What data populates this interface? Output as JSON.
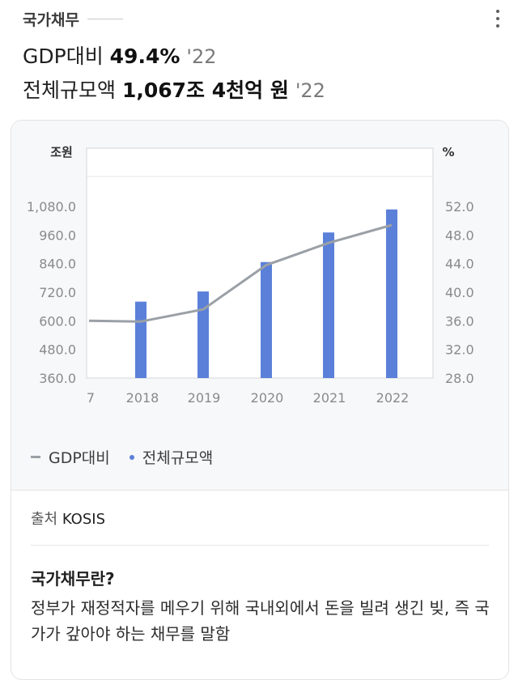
{
  "header": {
    "title": "국가채무"
  },
  "stats": [
    {
      "label": "GDP대비",
      "value": "49.4%",
      "year": "'22"
    },
    {
      "label": "전체규모액",
      "value": "1,067조 4천억 원",
      "year": "'22"
    }
  ],
  "chart_data": {
    "type": "bar+line",
    "left_axis_unit": "조원",
    "right_axis_unit": "%",
    "left_ticks": [
      "1,080.0",
      "960.0",
      "840.0",
      "720.0",
      "600.0",
      "480.0",
      "360.0"
    ],
    "right_ticks": [
      "52.0",
      "48.0",
      "44.0",
      "40.0",
      "36.0",
      "32.0",
      "28.0"
    ],
    "left_range": [
      360,
      1080
    ],
    "right_range": [
      28,
      52
    ],
    "x_labels": [
      "7",
      "2018",
      "2019",
      "2020",
      "2021",
      "2022"
    ],
    "series": [
      {
        "name": "전체규모액",
        "type": "bar",
        "axis": "left",
        "color": "#5b80d9",
        "x": [
          "2018",
          "2019",
          "2020",
          "2021",
          "2022"
        ],
        "values": [
          680.5,
          723.2,
          846.6,
          970.7,
          1067.4
        ]
      },
      {
        "name": "GDP대비",
        "type": "line",
        "axis": "right",
        "color": "#9aa0a6",
        "x": [
          "2017",
          "2018",
          "2019",
          "2020",
          "2021",
          "2022"
        ],
        "values": [
          36.0,
          35.9,
          37.6,
          43.8,
          46.9,
          49.4
        ]
      }
    ],
    "legend_position": "bottom-left"
  },
  "legend": {
    "line_label": "GDP대비",
    "bar_label": "전체규모액"
  },
  "source": {
    "label": "출처",
    "value": "KOSIS"
  },
  "definition": {
    "title": "국가채무란?",
    "body": "정부가 재정적자를 메우기 위해 국내외에서 돈을 빌려 생긴 빚, 즉 국가가 갚아야 하는 채무를 말함"
  }
}
